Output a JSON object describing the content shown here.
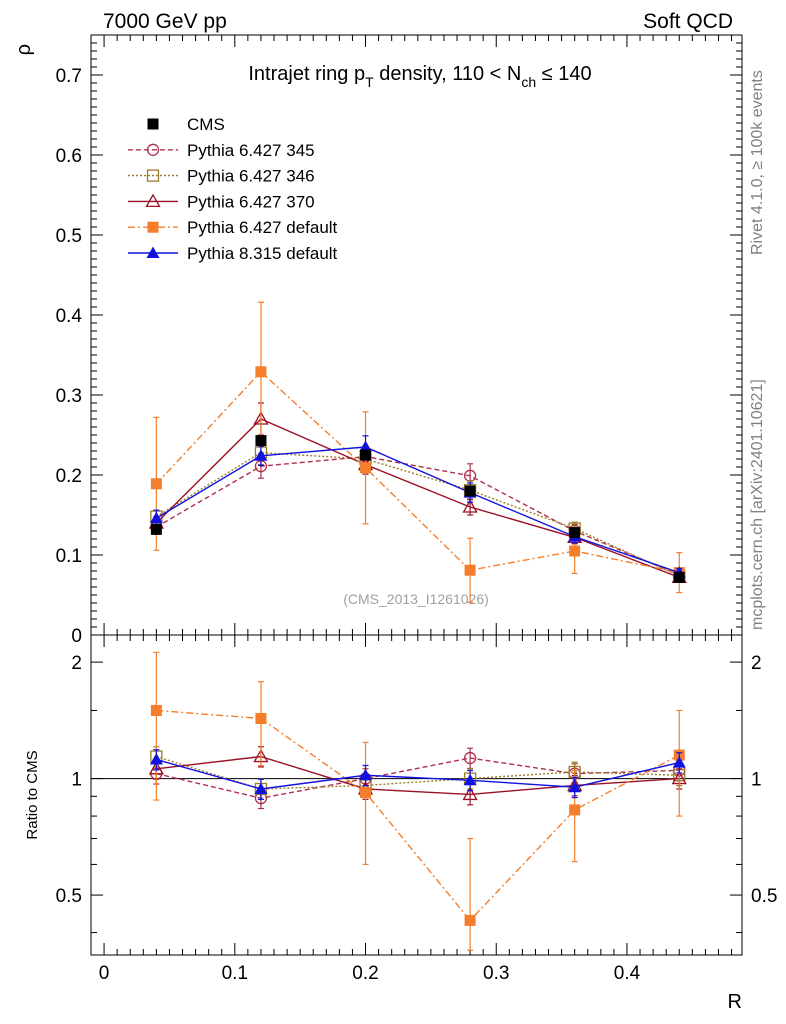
{
  "header": {
    "left": "7000 GeV pp",
    "right": "Soft QCD"
  },
  "side": {
    "rivet": "Rivet 4.1.0, ≥ 100k events",
    "mcplots": "mcplots.cern.ch [arXiv:2401.10621]"
  },
  "chart_data": {
    "type": "line",
    "title": "Intrajet ring p_T density, 110 < N_ch ≤ 140",
    "title_parts": {
      "a": "Intrajet ring p",
      "a_sub": "T",
      "b": " density, 110 < N",
      "b_sub": "ch",
      "c": " ≤ 140"
    },
    "analysis_label": "(CMS_2013_I1261026)",
    "xlabel": "R",
    "ylabel": "ρ",
    "ratio_ylabel": "Ratio to CMS",
    "xlim": [
      -0.01,
      0.488
    ],
    "ylim": [
      0,
      0.75
    ],
    "ratio_ylim": [
      0.35,
      2.35
    ],
    "ratio_scale": "log",
    "x_ticks": [
      0,
      0.1,
      0.2,
      0.3,
      0.4
    ],
    "x_tick_labels": [
      "0",
      "0.1",
      "0.2",
      "0.3",
      "0.4"
    ],
    "y_ticks": [
      0,
      0.1,
      0.2,
      0.3,
      0.4,
      0.5,
      0.6,
      0.7
    ],
    "y_tick_labels": [
      "0",
      "0.1",
      "0.2",
      "0.3",
      "0.4",
      "0.5",
      "0.6",
      "0.7"
    ],
    "ratio_ticks": [
      0.5,
      1,
      2
    ],
    "ratio_tick_labels": [
      "0.5",
      "1",
      "2"
    ],
    "x": [
      0.04,
      0.12,
      0.2,
      0.28,
      0.36,
      0.44
    ],
    "reference": {
      "name": "CMS",
      "color": "#000000",
      "marker": "square-filled",
      "values": [
        0.132,
        0.243,
        0.225,
        0.18,
        0.128,
        0.072
      ],
      "errors": [
        0.003,
        0.005,
        0.004,
        0.003,
        0.003,
        0.002
      ]
    },
    "series": [
      {
        "name": "Pythia 6.427 345",
        "color": "#b0304a",
        "dash": "5,3",
        "marker": "circle-open",
        "values": [
          0.135,
          0.211,
          0.223,
          0.199,
          0.13,
          0.075
        ],
        "errors": [
          0.008,
          0.015,
          0.012,
          0.015,
          0.008,
          0.005
        ]
      },
      {
        "name": "Pythia 6.427 346",
        "color": "#9a7e2c",
        "dash": "2,2",
        "marker": "square-open",
        "values": [
          0.148,
          0.228,
          0.22,
          0.181,
          0.133,
          0.074
        ],
        "errors": [
          0.008,
          0.015,
          0.012,
          0.012,
          0.008,
          0.005
        ]
      },
      {
        "name": "Pythia 6.427 370",
        "color": "#9b1024",
        "dash": "",
        "marker": "triangle-open",
        "values": [
          0.14,
          0.27,
          0.213,
          0.16,
          0.122,
          0.072
        ],
        "errors": [
          0.008,
          0.02,
          0.012,
          0.01,
          0.008,
          0.005
        ]
      },
      {
        "name": "Pythia 6.427 default",
        "color": "#f57e2c",
        "dash": "7,3,2,3",
        "marker": "square-filled",
        "values": [
          0.189,
          0.329,
          0.209,
          0.081,
          0.105,
          0.078
        ],
        "errors": [
          0.083,
          0.087,
          0.07,
          0.04,
          0.028,
          0.025
        ]
      },
      {
        "name": "Pythia 8.315 default",
        "color": "#1111e0",
        "dash": "",
        "marker": "triangle-filled",
        "values": [
          0.146,
          0.224,
          0.235,
          0.178,
          0.123,
          0.078
        ],
        "errors": [
          0.01,
          0.012,
          0.014,
          0.012,
          0.008,
          0.005
        ]
      }
    ],
    "ratio_series": [
      {
        "name": "Pythia 6.427 345",
        "values": [
          1.03,
          0.89,
          1.0,
          1.13,
          1.03,
          1.05
        ]
      },
      {
        "name": "Pythia 6.427 346",
        "values": [
          1.14,
          0.94,
          0.96,
          1.0,
          1.04,
          1.02
        ]
      },
      {
        "name": "Pythia 6.427 370",
        "values": [
          1.06,
          1.14,
          0.94,
          0.91,
          0.96,
          1.0
        ]
      },
      {
        "name": "Pythia 6.427 default",
        "values": [
          1.5,
          1.43,
          0.92,
          0.43,
          0.83,
          1.15
        ],
        "errors": [
          0.62,
          0.35,
          0.32,
          0.27,
          0.22,
          0.35
        ]
      },
      {
        "name": "Pythia 8.315 default",
        "values": [
          1.12,
          0.94,
          1.02,
          0.99,
          0.95,
          1.1
        ]
      }
    ]
  }
}
